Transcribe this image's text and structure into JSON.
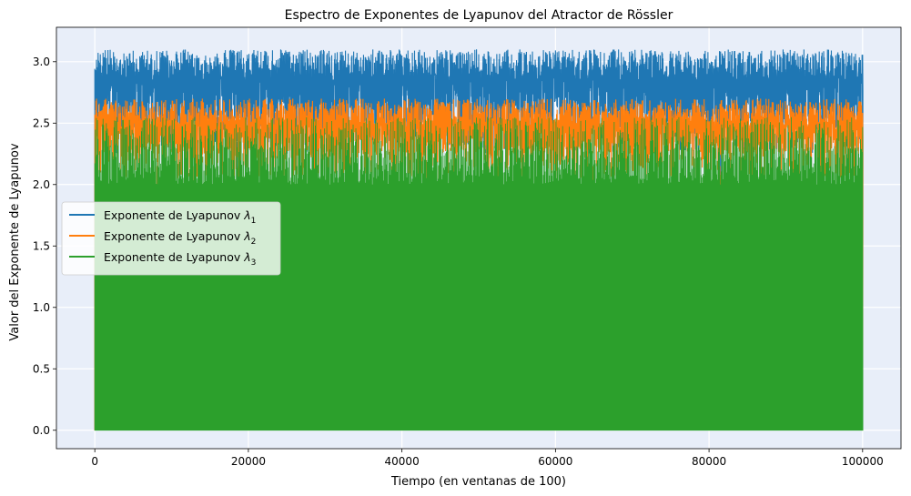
{
  "chart_data": {
    "type": "line",
    "title": "Espectro de Exponentes de Lyapunov del Atractor de Rössler",
    "xlabel": "Tiempo (en ventanas de 100)",
    "ylabel": "Valor del Exponente de Lyapunov",
    "xlim": [
      -5000,
      105000
    ],
    "ylim": [
      -0.15,
      3.28
    ],
    "x_range": [
      0,
      100000
    ],
    "xticks": [
      0,
      20000,
      40000,
      60000,
      80000,
      100000
    ],
    "xtick_labels": [
      "0",
      "20000",
      "40000",
      "60000",
      "80000",
      "100000"
    ],
    "yticks": [
      0.0,
      0.5,
      1.0,
      1.5,
      2.0,
      2.5,
      3.0
    ],
    "ytick_labels": [
      "0.0",
      "0.5",
      "1.0",
      "1.5",
      "2.0",
      "2.5",
      "3.0"
    ],
    "grid": true,
    "background": "#e8eef9",
    "legend_placement": "center-left",
    "series": [
      {
        "name": "Exponente de Lyapunov",
        "subscript": "1",
        "color": "#1f77b4",
        "typical_range": [
          2.25,
          3.1
        ],
        "min_value": 0.0,
        "dips": [
          [
            52300,
            0.8
          ],
          [
            81500,
            1.65
          ],
          [
            94700,
            1.95
          ],
          [
            94900,
            1.9
          ],
          [
            18500,
            1.95
          ],
          [
            5500,
            2.05
          ]
        ]
      },
      {
        "name": "Exponente de Lyapunov",
        "subscript": "2",
        "color": "#ff7f0e",
        "typical_range": [
          2.05,
          2.7
        ],
        "min_value": 0.0,
        "dips": [
          [
            8100,
            0.02
          ],
          [
            12800,
            0.75
          ],
          [
            18700,
            0.02
          ],
          [
            52500,
            0.78
          ],
          [
            64300,
            1.52
          ],
          [
            64800,
            0.02
          ],
          [
            81400,
            0.92
          ],
          [
            86800,
            0.68
          ],
          [
            94500,
            0.02
          ],
          [
            95000,
            0.02
          ],
          [
            99700,
            0.02
          ],
          [
            27300,
            1.9
          ],
          [
            44800,
            1.7
          ]
        ]
      },
      {
        "name": "Exponente de Lyapunov",
        "subscript": "3",
        "color": "#2ca02c",
        "typical_range": [
          0.0,
          2.55
        ],
        "min_value": 0.0,
        "dips": []
      }
    ]
  }
}
